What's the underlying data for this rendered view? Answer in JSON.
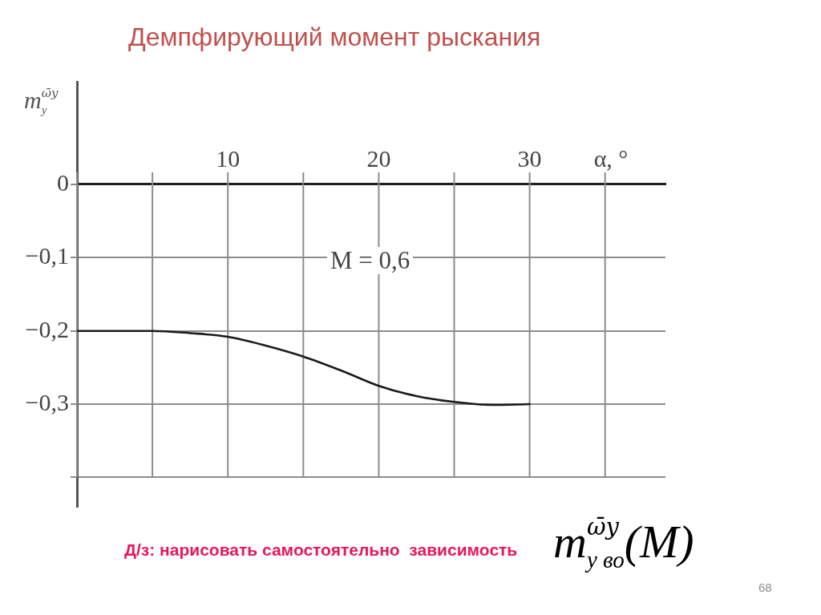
{
  "chart_data": {
    "type": "line",
    "title": "Демпфирующий момент рыскания",
    "xlabel": "α, °",
    "ylabel": "m$^{ω̄y}$$_{y}$",
    "x": [
      0,
      2.5,
      5,
      7.5,
      10,
      12.5,
      15,
      17.5,
      20,
      22.5,
      25,
      27.5,
      30
    ],
    "series": [
      {
        "color": "#1a1a1a",
        "values": [
          -0.2,
          -0.2,
          -0.2,
          -0.203,
          -0.208,
          -0.22,
          -0.235,
          -0.254,
          -0.275,
          -0.289,
          -0.297,
          -0.301,
          -0.3
        ]
      }
    ],
    "xlim": [
      0,
      39
    ],
    "ylim": [
      -0.44,
      0.14
    ],
    "xticks": [
      {
        "value": 0,
        "label": null
      },
      {
        "value": 5,
        "label": null
      },
      10,
      {
        "value": 15,
        "label": null
      },
      20,
      {
        "value": 25,
        "label": null
      },
      30,
      {
        "value": 35,
        "label": null
      }
    ],
    "yticks": [
      {
        "value": 0,
        "label": "0"
      },
      {
        "value": -0.1,
        "label": "−0,1"
      },
      {
        "value": -0.2,
        "label": "−0,2"
      },
      {
        "value": -0.3,
        "label": "−0,3"
      },
      {
        "value": -0.4,
        "label": null
      }
    ],
    "grid": true,
    "marker": "none",
    "line_style": "solid",
    "annotations": [
      "M = 0,6",
      "Д/з: нарисовать самостоятельно  зависимость",
      "m$^{ω̄y}$$_{y во}$(M)",
      "68"
    ]
  }
}
